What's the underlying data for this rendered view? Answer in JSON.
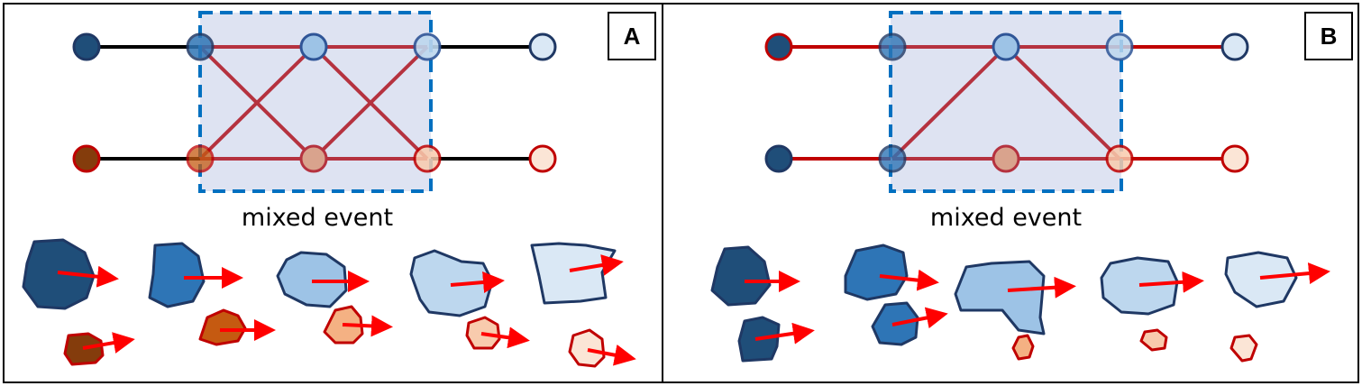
{
  "panels": [
    {
      "letter": "A",
      "caption": "mixed event"
    },
    {
      "letter": "B",
      "caption": "mixed event"
    }
  ],
  "colors": {
    "blue_dark": "#1f4e79",
    "blue_mid": "#2e75b6",
    "blue_light": "#9dc3e6",
    "blue_pale": "#bdd7ee",
    "blue_paler": "#dae8f5",
    "outline_blue": "#1f3864",
    "red_outline": "#c00000",
    "brown": "#843c0c",
    "orange": "#c55a11",
    "salmon": "#f4b183",
    "peach": "#f8cbad",
    "pale_peach": "#fbe5d6",
    "link_red": "#b5323f",
    "line_black": "#000000",
    "box_fill": "#dee3f2",
    "box_border": "#0070c0",
    "arrow_red": "#ff0000"
  }
}
